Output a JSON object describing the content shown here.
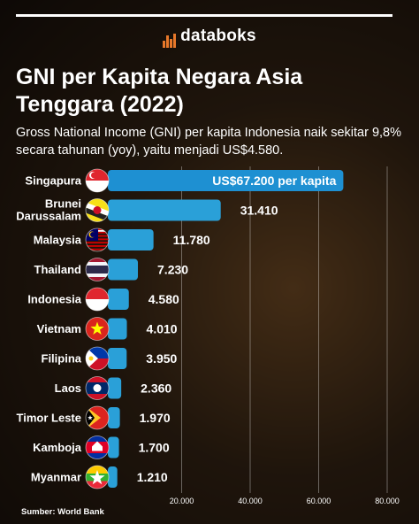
{
  "brand": {
    "name": "databoks",
    "logo_icon": "bars-logo-icon"
  },
  "header": {
    "title": "GNI per Kapita Negara Asia Tenggara (2022)",
    "subtitle": "Gross National Income (GNI) per kapita Indonesia naik sekitar 9,8% secara tahunan (yoy), yaitu menjadi US$4.580."
  },
  "source": "Sumber: World Bank",
  "colors": {
    "bar": "#2aa0d8",
    "bar_highlight": "#1e90d2"
  },
  "chart_data": {
    "type": "bar",
    "orientation": "horizontal",
    "title": "GNI per Kapita Negara Asia Tenggara (2022)",
    "categories": [
      "Singapura",
      "Brunei Darussalam",
      "Malaysia",
      "Thailand",
      "Indonesia",
      "Vietnam",
      "Filipina",
      "Laos",
      "Timor Leste",
      "Kamboja",
      "Myanmar"
    ],
    "values": [
      67200,
      31410,
      11780,
      7230,
      4580,
      4010,
      3950,
      2360,
      1970,
      1700,
      1210
    ],
    "data_labels": [
      "US$67.200 per kapita",
      "31.410",
      "11.780",
      "7.230",
      "4.580",
      "4.010",
      "3.950",
      "2.360",
      "1.970",
      "1.700",
      "1.210"
    ],
    "flags": [
      "singapore-flag-icon",
      "brunei-flag-icon",
      "malaysia-flag-icon",
      "thailand-flag-icon",
      "indonesia-flag-icon",
      "vietnam-flag-icon",
      "philippines-flag-icon",
      "laos-flag-icon",
      "timor-leste-flag-icon",
      "cambodia-flag-icon",
      "myanmar-flag-icon"
    ],
    "x_ticks": [
      20000,
      40000,
      60000,
      80000
    ],
    "x_tick_labels": [
      "20.000",
      "40.000",
      "60.000",
      "80.000"
    ],
    "xlim": [
      0,
      80000
    ],
    "grid": true
  }
}
